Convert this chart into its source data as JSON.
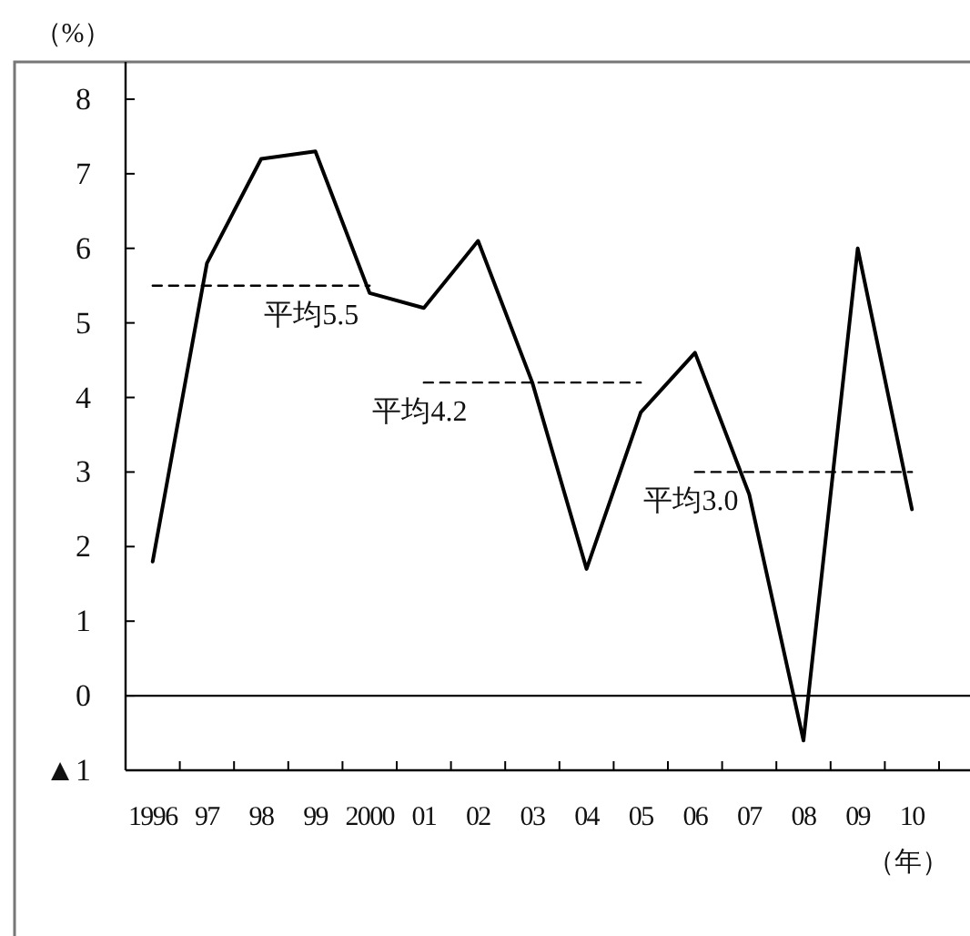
{
  "chart_data": {
    "type": "line",
    "ylabel": "（%）",
    "xlabel": "（年）",
    "categories": [
      "1996",
      "97",
      "98",
      "99",
      "2000",
      "01",
      "02",
      "03",
      "04",
      "05",
      "06",
      "07",
      "08",
      "09",
      "10"
    ],
    "series": [
      {
        "color": "#000000",
        "line_style": "solid",
        "values": [
          1.8,
          5.8,
          7.2,
          7.3,
          5.4,
          5.2,
          6.1,
          4.2,
          1.7,
          3.8,
          4.6,
          2.7,
          -0.6,
          6.0,
          2.5
        ]
      },
      {
        "color": "#000000",
        "line_style": "dashed",
        "values": [
          5.5,
          5.5,
          5.5,
          5.5,
          5.5,
          null,
          null,
          null,
          null,
          null,
          null,
          null,
          null,
          null,
          null
        ]
      },
      {
        "color": "#000000",
        "line_style": "dashed",
        "values": [
          null,
          null,
          null,
          null,
          null,
          4.2,
          4.2,
          4.2,
          4.2,
          4.2,
          null,
          null,
          null,
          null,
          null
        ]
      },
      {
        "color": "#000000",
        "line_style": "dashed",
        "values": [
          null,
          null,
          null,
          null,
          null,
          null,
          null,
          null,
          null,
          null,
          3.0,
          3.0,
          3.0,
          3.0,
          3.0
        ]
      }
    ],
    "annotations": [
      {
        "text": "平均5.5",
        "x": "99",
        "y": 5.5
      },
      {
        "text": "平均4.2",
        "x": "01",
        "y": 4.2
      },
      {
        "text": "平均3.0",
        "x": "06",
        "y": 3.0
      }
    ],
    "ref_lines": [
      {
        "axis": "y",
        "value": 0,
        "color": "#000000"
      }
    ],
    "ylim": [
      -1,
      8.5
    ],
    "yticks": [
      {
        "value": -1,
        "label": "▲1"
      },
      0,
      1,
      2,
      3,
      4,
      5,
      6,
      7,
      8
    ]
  }
}
